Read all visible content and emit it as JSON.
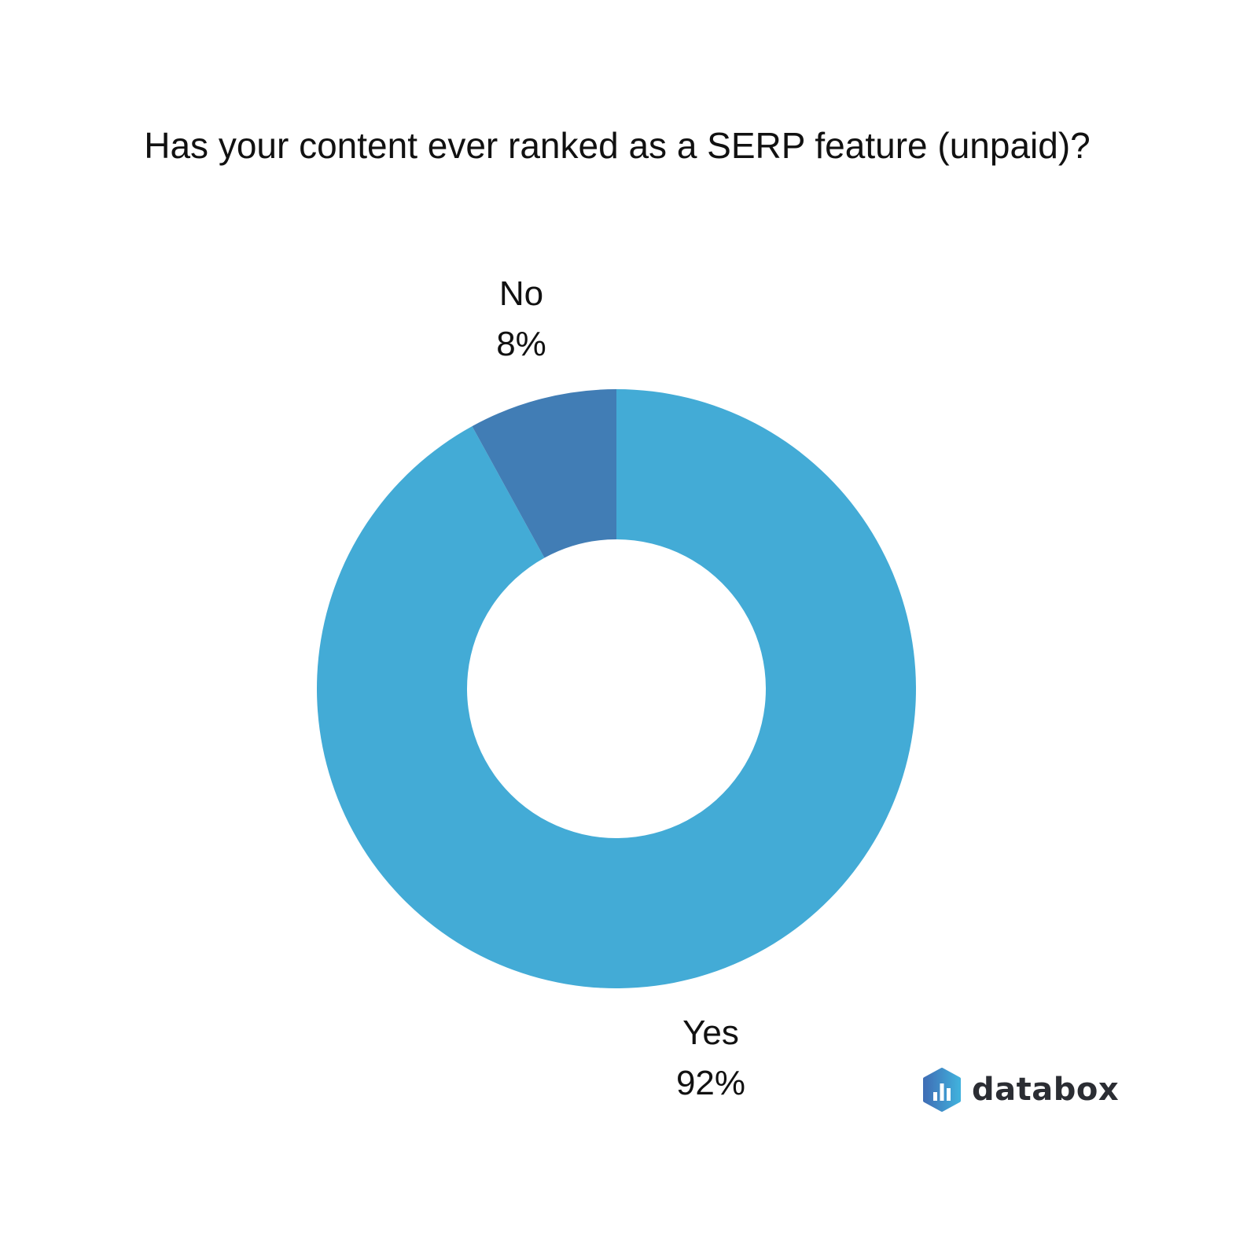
{
  "title": "Has your content ever ranked as a SERP feature (unpaid)?",
  "labels": {
    "no": {
      "name": "No",
      "value": "8%"
    },
    "yes": {
      "name": "Yes",
      "value": "92%"
    }
  },
  "logo": {
    "text": "databox",
    "icon": "databox-logo-icon"
  },
  "colors": {
    "yes": "#43ABD6",
    "no": "#417DB5"
  },
  "chart_data": {
    "type": "pie",
    "variant": "donut",
    "title": "Has your content ever ranked as a SERP feature (unpaid)?",
    "categories": [
      "Yes",
      "No"
    ],
    "values": [
      92,
      8
    ],
    "unit": "%",
    "colors": [
      "#43ABD6",
      "#417DB5"
    ],
    "legend": "none (direct labels)"
  }
}
